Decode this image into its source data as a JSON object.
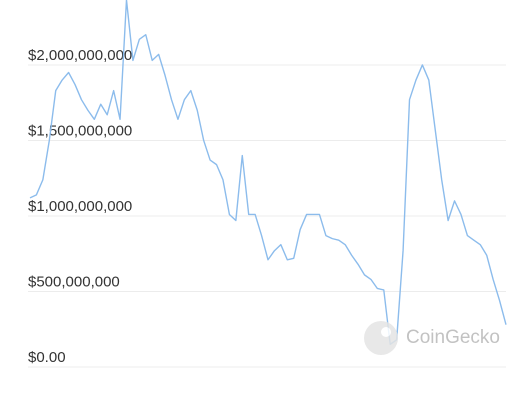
{
  "chart_data": {
    "type": "line",
    "values": [
      1120000000,
      1140000000,
      1240000000,
      1500000000,
      1830000000,
      1900000000,
      1950000000,
      1870000000,
      1770000000,
      1700000000,
      1640000000,
      1740000000,
      1670000000,
      1830000000,
      1640000000,
      2430000000,
      2030000000,
      2170000000,
      2200000000,
      2030000000,
      2070000000,
      1930000000,
      1770000000,
      1640000000,
      1770000000,
      1830000000,
      1700000000,
      1500000000,
      1370000000,
      1340000000,
      1240000000,
      1010000000,
      970000000,
      1400000000,
      1010000000,
      1010000000,
      870000000,
      710000000,
      770000000,
      810000000,
      710000000,
      720000000,
      910000000,
      1010000000,
      1010000000,
      1010000000,
      870000000,
      850000000,
      840000000,
      810000000,
      740000000,
      680000000,
      610000000,
      580000000,
      520000000,
      510000000,
      150000000,
      180000000,
      770000000,
      1770000000,
      1900000000,
      2000000000,
      1900000000,
      1570000000,
      1240000000,
      970000000,
      1100000000,
      1010000000,
      870000000,
      840000000,
      810000000,
      740000000,
      580000000,
      440000000,
      280000000
    ],
    "color": "#8cbcec",
    "ylim": [
      0,
      2430000000
    ],
    "yticks": [
      {
        "value": 0,
        "label": "$0.00"
      },
      {
        "value": 500000000,
        "label": "$500,000,000"
      },
      {
        "value": 1000000000,
        "label": "$1,000,000,000"
      },
      {
        "value": 1500000000,
        "label": "$1,500,000,000"
      },
      {
        "value": 2000000000,
        "label": "$2,000,000,000"
      }
    ],
    "grid": true,
    "watermark": "CoinGecko"
  }
}
